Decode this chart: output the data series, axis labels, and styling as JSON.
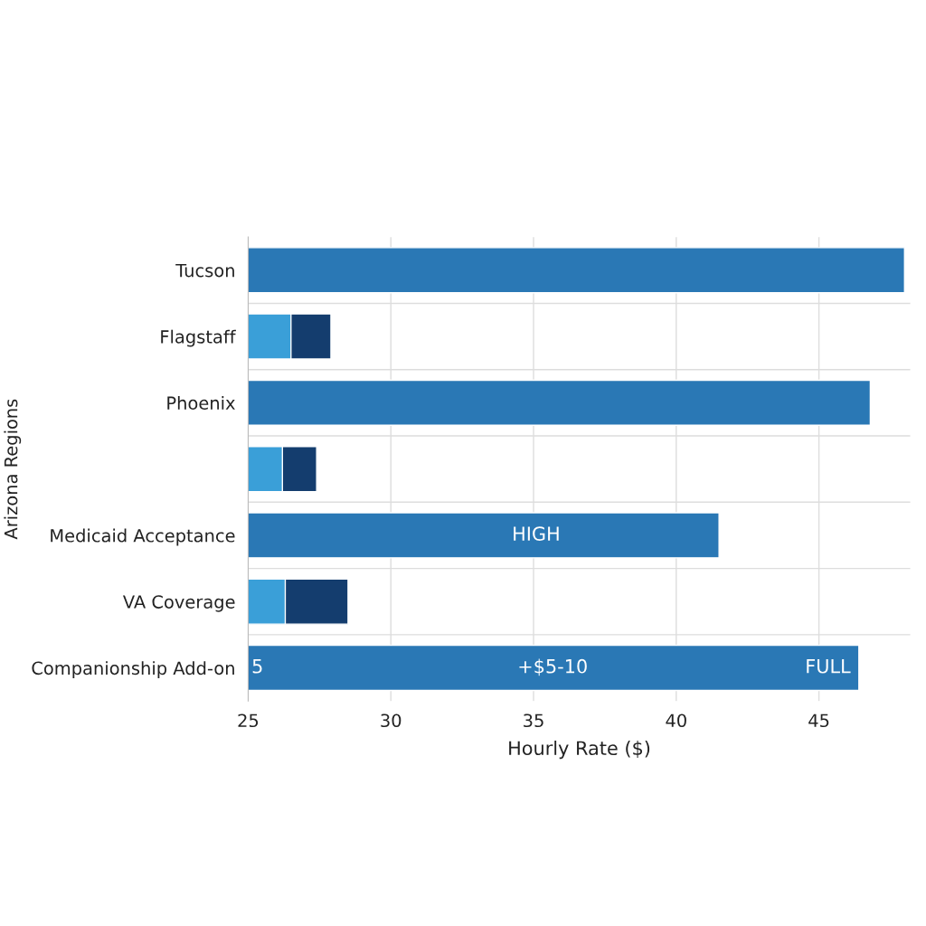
{
  "chart_data": {
    "type": "bar",
    "orientation": "horizontal",
    "xlabel": "Hourly Rate ($)",
    "ylabel": "Arizona Regions",
    "categories": [
      "Tucson",
      "Flagstaff",
      "Phoenix",
      null,
      "Medicaid Acceptance",
      "VA Coverage",
      "Companionship Add-on"
    ],
    "series": [
      {
        "color": "#143d6e",
        "values": [
          null,
          27.9,
          null,
          27.4,
          null,
          28.5,
          null
        ]
      },
      {
        "colors": [
          "#2a78b5",
          "#3a9fd8",
          "#2a78b5",
          "#3a9fd8",
          "#2a78b5",
          "#3a9fd8",
          "#2a78b5"
        ],
        "values": [
          48.0,
          26.5,
          46.8,
          26.2,
          41.5,
          26.3,
          46.4
        ]
      }
    ],
    "xlim": [
      25,
      48.2
    ],
    "xticks": [
      25,
      30,
      35,
      40,
      45
    ],
    "grid": true,
    "annotations": [
      "HIGH",
      "5",
      "+$5-10",
      "FULL"
    ]
  }
}
